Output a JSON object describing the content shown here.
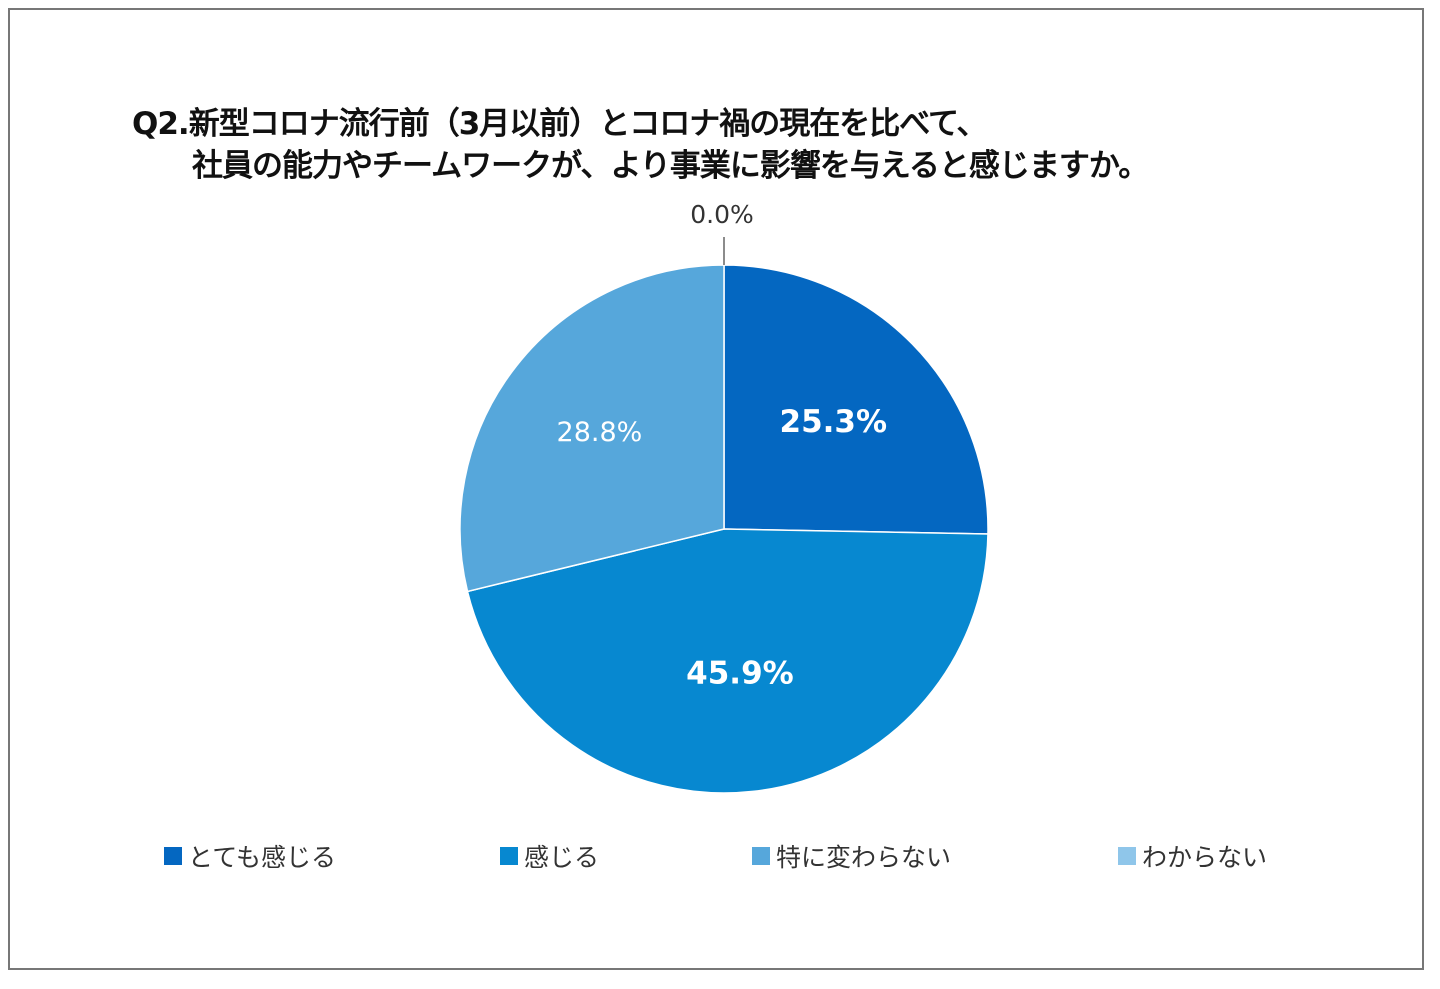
{
  "chart_data": {
    "type": "pie",
    "title_lines": [
      "Q2.新型コロナ流行前（3月以前）とコロナ禍の現在を比べて、",
      "社員の能力やチームワークが、より事業に影響を与えると感じますか。"
    ],
    "categories": [
      "とても感じる",
      "感じる",
      "特に変わらない",
      "わからない"
    ],
    "values": [
      25.3,
      45.9,
      28.8,
      0.0
    ],
    "labels": [
      "25.3%",
      "45.9%",
      "28.8%",
      "0.0%"
    ],
    "colors": [
      "#0467C1",
      "#0788D0",
      "#56A7DB",
      "#8FC6EA"
    ],
    "start_angle": "12 o'clock",
    "direction": "clockwise",
    "legend_placement": "bottom"
  }
}
